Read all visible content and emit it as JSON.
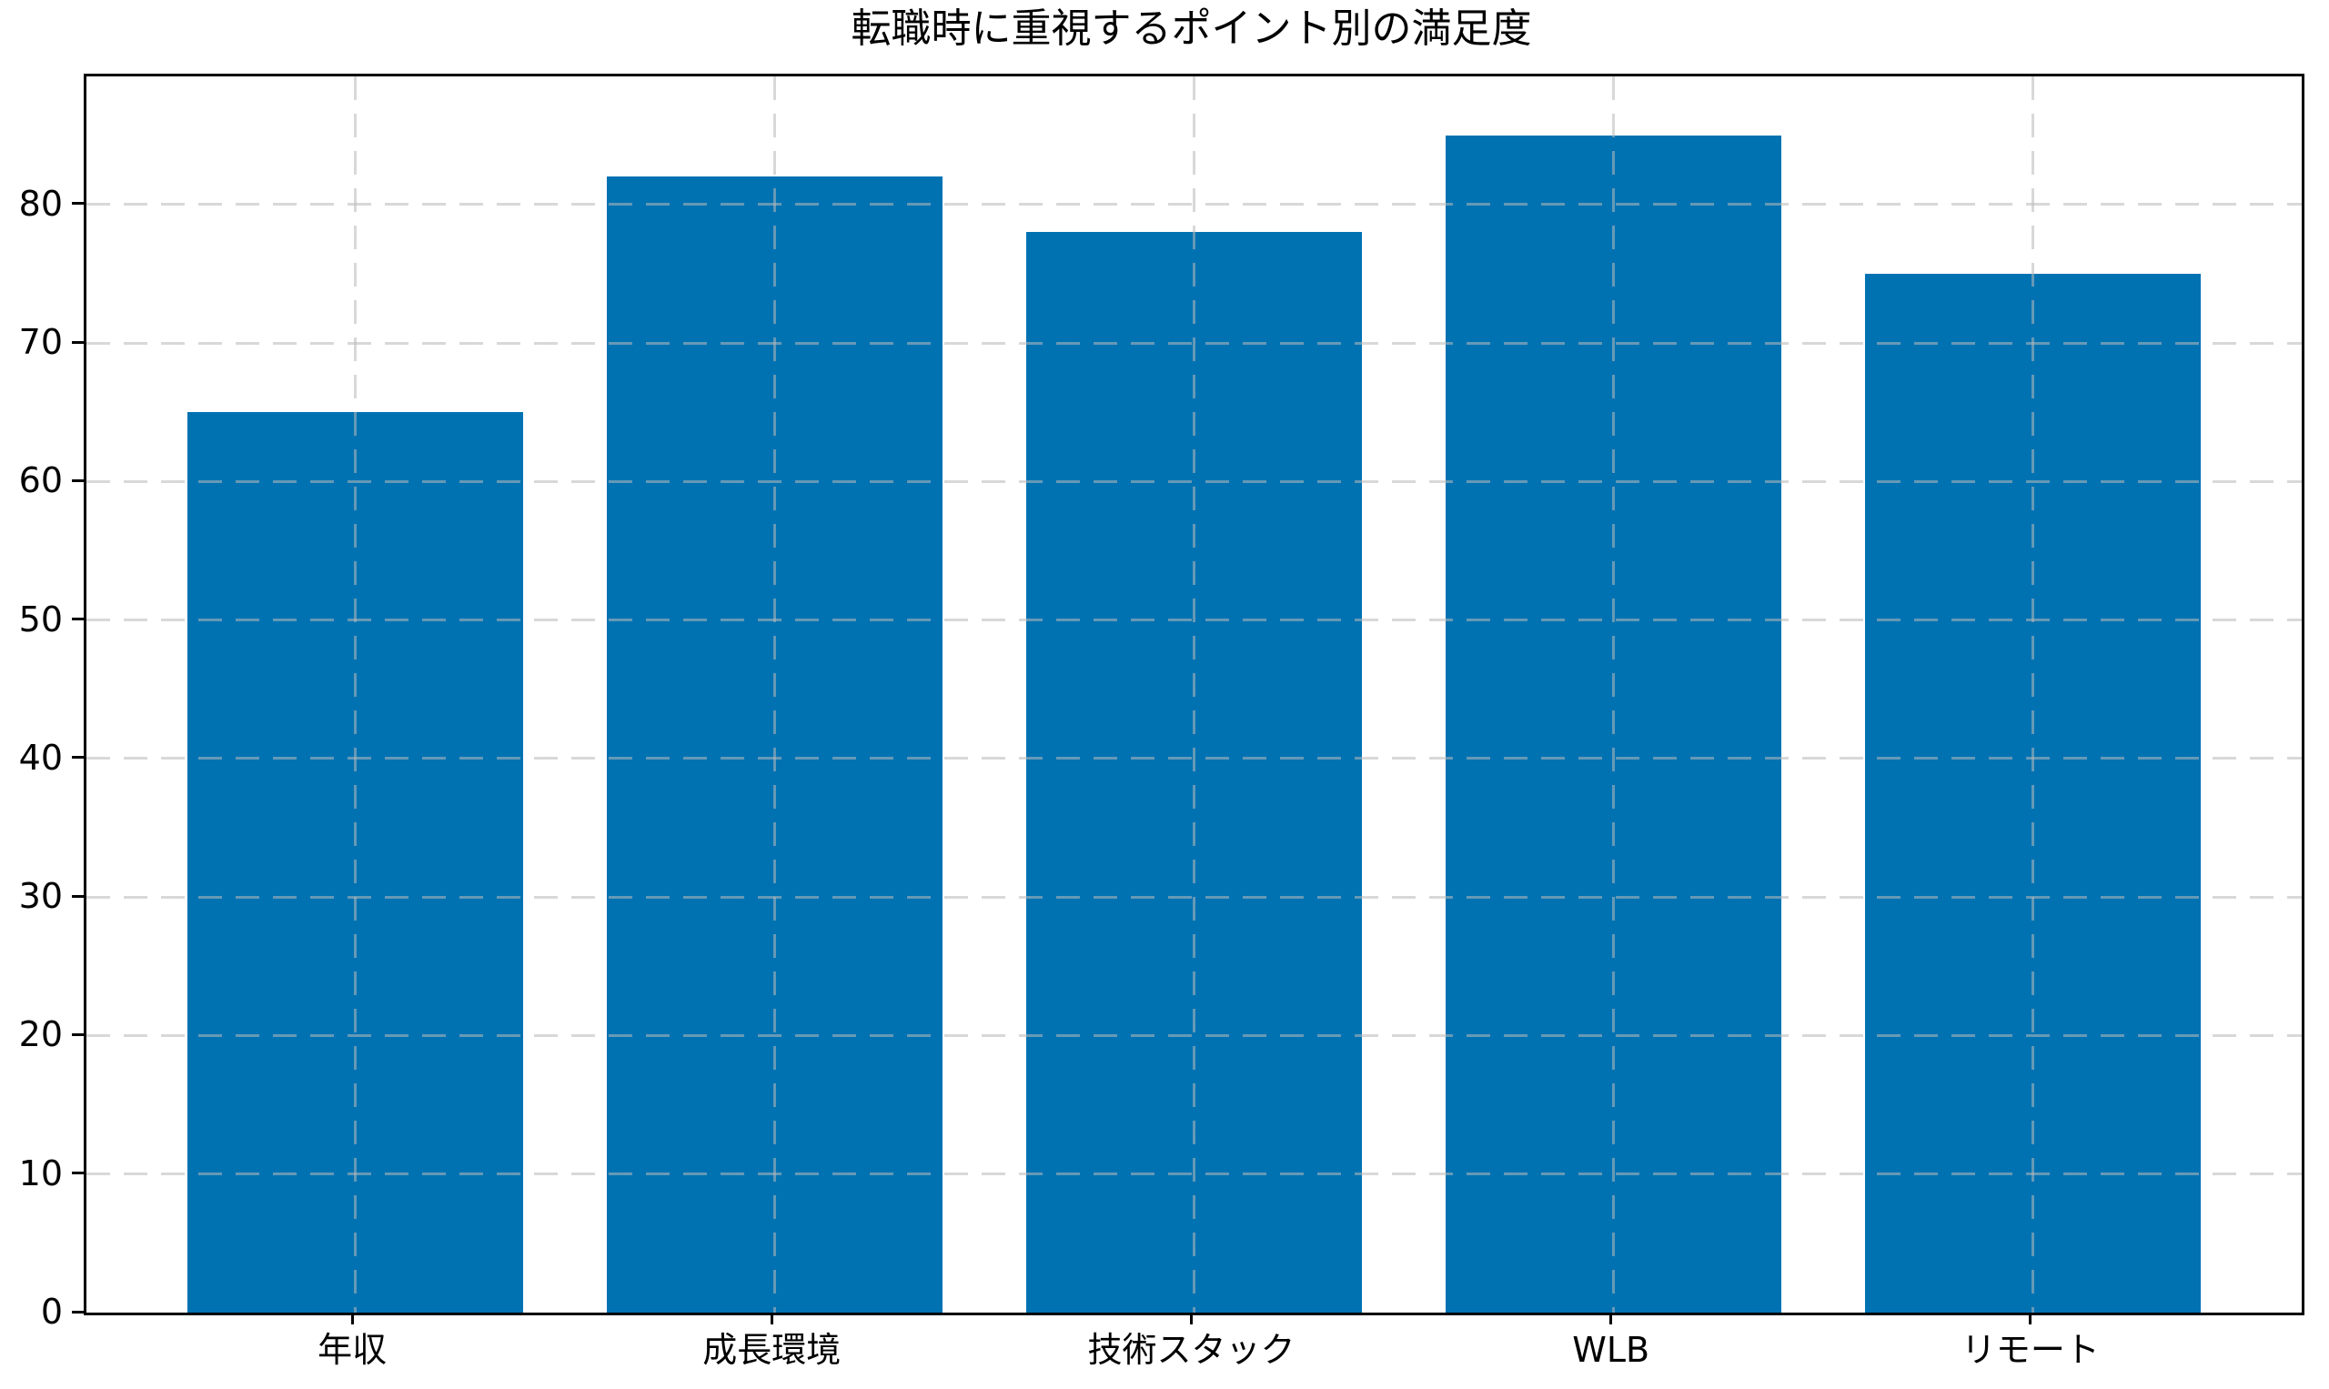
{
  "chart_data": {
    "type": "bar",
    "title": "転職時に重視するポイント別の満足度",
    "categories": [
      "年収",
      "成長環境",
      "技術スタック",
      "WLB",
      "リモート"
    ],
    "values": [
      65,
      82,
      78,
      85,
      75
    ],
    "xlabel": "",
    "ylabel": "",
    "yticks": [
      0,
      10,
      20,
      30,
      40,
      50,
      60,
      70,
      80
    ],
    "ylim": [
      0,
      89.25
    ],
    "legend": "none",
    "grid": {
      "visible": true,
      "style": "dashed",
      "axes": "both",
      "above_bars": true
    },
    "colors": {
      "bar": "#0072B2",
      "grid": "rgba(185,185,185,0.55)",
      "axis": "#000000",
      "text": "#000000",
      "background": "#ffffff"
    }
  }
}
